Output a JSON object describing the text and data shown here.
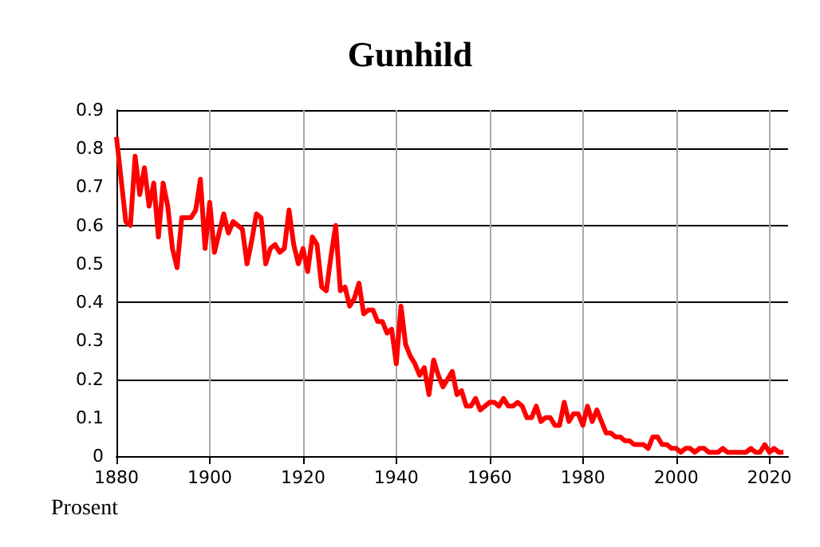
{
  "chart_data": {
    "type": "line",
    "title": "Gunhild",
    "ylabel": "Prosent",
    "x": [
      1880,
      1881,
      1882,
      1883,
      1884,
      1885,
      1886,
      1887,
      1888,
      1889,
      1890,
      1891,
      1892,
      1893,
      1894,
      1895,
      1896,
      1897,
      1898,
      1899,
      1900,
      1901,
      1902,
      1903,
      1904,
      1905,
      1906,
      1907,
      1908,
      1909,
      1910,
      1911,
      1912,
      1913,
      1914,
      1915,
      1916,
      1917,
      1918,
      1919,
      1920,
      1921,
      1922,
      1923,
      1924,
      1925,
      1926,
      1927,
      1928,
      1929,
      1930,
      1931,
      1932,
      1933,
      1934,
      1935,
      1936,
      1937,
      1938,
      1939,
      1940,
      1941,
      1942,
      1943,
      1944,
      1945,
      1946,
      1947,
      1948,
      1949,
      1950,
      1951,
      1952,
      1953,
      1954,
      1955,
      1956,
      1957,
      1958,
      1959,
      1960,
      1961,
      1962,
      1963,
      1964,
      1965,
      1966,
      1967,
      1968,
      1969,
      1970,
      1971,
      1972,
      1973,
      1974,
      1975,
      1976,
      1977,
      1978,
      1979,
      1980,
      1981,
      1982,
      1983,
      1984,
      1985,
      1986,
      1987,
      1988,
      1989,
      1990,
      1991,
      1992,
      1993,
      1994,
      1995,
      1996,
      1997,
      1998,
      1999,
      2000,
      2001,
      2002,
      2003,
      2004,
      2005,
      2006,
      2007,
      2008,
      2009,
      2010,
      2011,
      2012,
      2013,
      2014,
      2015,
      2016,
      2017,
      2018,
      2019,
      2020,
      2021,
      2022,
      2023
    ],
    "series": [
      {
        "color": "#ff0000",
        "values": [
          0.83,
          0.72,
          0.61,
          0.6,
          0.78,
          0.68,
          0.75,
          0.65,
          0.71,
          0.57,
          0.71,
          0.65,
          0.54,
          0.49,
          0.62,
          0.62,
          0.62,
          0.64,
          0.72,
          0.54,
          0.66,
          0.53,
          0.58,
          0.63,
          0.58,
          0.61,
          0.6,
          0.59,
          0.5,
          0.56,
          0.63,
          0.62,
          0.5,
          0.54,
          0.55,
          0.53,
          0.54,
          0.64,
          0.55,
          0.5,
          0.54,
          0.48,
          0.57,
          0.55,
          0.44,
          0.43,
          0.52,
          0.6,
          0.43,
          0.44,
          0.39,
          0.41,
          0.45,
          0.37,
          0.38,
          0.38,
          0.35,
          0.35,
          0.32,
          0.33,
          0.24,
          0.39,
          0.29,
          0.26,
          0.24,
          0.21,
          0.23,
          0.16,
          0.25,
          0.21,
          0.18,
          0.2,
          0.22,
          0.16,
          0.17,
          0.13,
          0.13,
          0.15,
          0.12,
          0.13,
          0.14,
          0.14,
          0.13,
          0.15,
          0.13,
          0.13,
          0.14,
          0.13,
          0.1,
          0.1,
          0.13,
          0.09,
          0.1,
          0.1,
          0.08,
          0.08,
          0.14,
          0.09,
          0.11,
          0.11,
          0.08,
          0.13,
          0.09,
          0.12,
          0.09,
          0.06,
          0.06,
          0.05,
          0.05,
          0.04,
          0.04,
          0.03,
          0.03,
          0.03,
          0.02,
          0.05,
          0.05,
          0.03,
          0.03,
          0.02,
          0.02,
          0.01,
          0.02,
          0.02,
          0.01,
          0.02,
          0.02,
          0.01,
          0.01,
          0.01,
          0.02,
          0.01,
          0.01,
          0.01,
          0.01,
          0.01,
          0.02,
          0.01,
          0.01,
          0.03,
          0.01,
          0.02,
          0.01,
          0.01
        ]
      }
    ],
    "xlim": [
      1880,
      2024
    ],
    "xticks": [
      1880,
      1900,
      1920,
      1940,
      1960,
      1980,
      2000,
      2020
    ],
    "ylim": [
      0,
      0.9
    ],
    "yticks": [
      0,
      0.1,
      0.2,
      0.3,
      0.4,
      0.5,
      0.6,
      0.7,
      0.8,
      0.9
    ],
    "grid": true,
    "marker": "none",
    "line_style": "solid"
  }
}
